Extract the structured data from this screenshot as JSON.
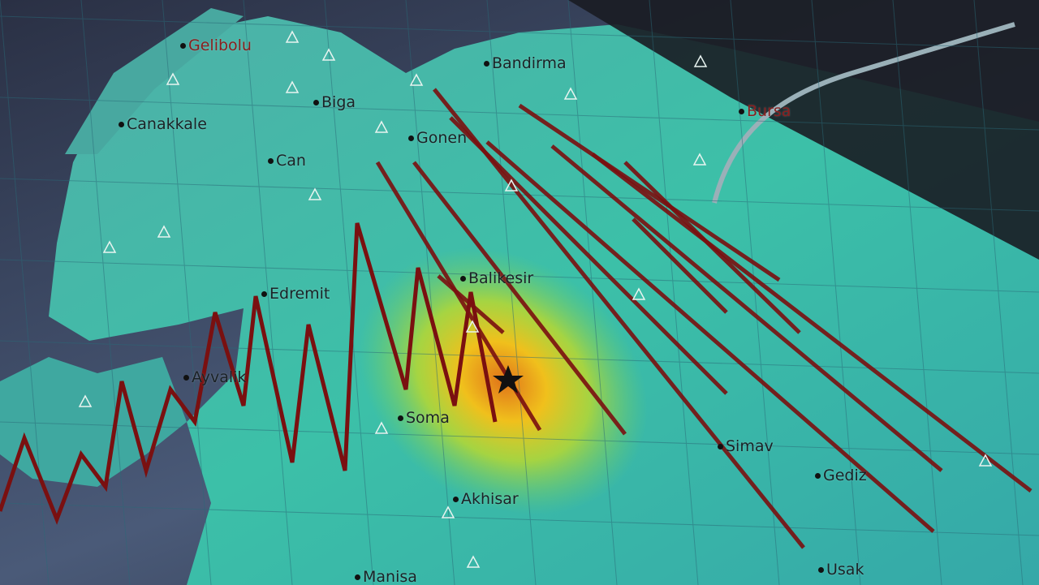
{
  "map": {
    "epicenter_icon": "star-icon",
    "station_icon": "triangle-icon",
    "colors": {
      "land": "#3fb8a8",
      "sea": "#46526e",
      "intensity_high": "#f2d21a",
      "intensity_peak": "#e07a1a",
      "seismograph_trace": "#7a1010"
    },
    "cities": [
      {
        "name": "Gelibolu",
        "style": "red"
      },
      {
        "name": "Bandirma",
        "style": "dark"
      },
      {
        "name": "Biga",
        "style": "dark"
      },
      {
        "name": "Canakkale",
        "style": "dark"
      },
      {
        "name": "Gonen",
        "style": "dark"
      },
      {
        "name": "Bursa",
        "style": "red"
      },
      {
        "name": "Can",
        "style": "dark"
      },
      {
        "name": "Balikesir",
        "style": "dark"
      },
      {
        "name": "Edremit",
        "style": "dark"
      },
      {
        "name": "Ayvalik",
        "style": "dark"
      },
      {
        "name": "Soma",
        "style": "dark"
      },
      {
        "name": "Simav",
        "style": "dark"
      },
      {
        "name": "Gediz",
        "style": "dark"
      },
      {
        "name": "Akhisar",
        "style": "dark"
      },
      {
        "name": "Usak",
        "style": "dark"
      },
      {
        "name": "Manisa",
        "style": "dark"
      }
    ]
  }
}
